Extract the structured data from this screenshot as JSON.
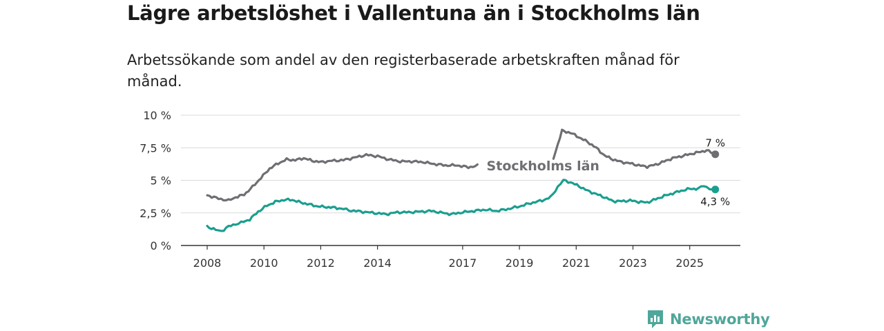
{
  "title": "Lägre arbetslöshet i Vallentuna än i Stockholms län",
  "subtitle": "Arbetssökande som andel av den registerbaserade arbetskraften månad för månad.",
  "brand": {
    "name": "Newsworthy",
    "icon": "newsworthy-logo-icon",
    "color": "#4fa69a"
  },
  "chart_data": {
    "type": "line",
    "title": "Lägre arbetslöshet i Vallentuna än i Stockholms län",
    "xlabel": "",
    "ylabel": "",
    "xlim": [
      2008.0,
      2025.9
    ],
    "ylim": [
      0,
      10
    ],
    "grid": true,
    "x_ticks": [
      2008,
      2010,
      2012,
      2014,
      2017,
      2019,
      2021,
      2023,
      2025
    ],
    "y_ticks": [
      {
        "value": 0,
        "label": "0 %"
      },
      {
        "value": 2.5,
        "label": "2,5 %"
      },
      {
        "value": 5,
        "label": "5 %"
      },
      {
        "value": 7.5,
        "label": "7,5 %"
      },
      {
        "value": 10,
        "label": "10 %"
      }
    ],
    "series": [
      {
        "name": "Stockholms län",
        "label": "Stockholms län",
        "color": "#6e6e73",
        "end_label": "7 %",
        "points": [
          [
            2008.0,
            3.85
          ],
          [
            2008.4,
            3.6
          ],
          [
            2008.75,
            3.45
          ],
          [
            2009.0,
            3.7
          ],
          [
            2009.3,
            3.9
          ],
          [
            2009.6,
            4.5
          ],
          [
            2009.9,
            5.2
          ],
          [
            2010.2,
            5.9
          ],
          [
            2010.5,
            6.3
          ],
          [
            2010.8,
            6.6
          ],
          [
            2011.1,
            6.55
          ],
          [
            2011.4,
            6.7
          ],
          [
            2011.7,
            6.5
          ],
          [
            2012.0,
            6.4
          ],
          [
            2012.4,
            6.5
          ],
          [
            2012.8,
            6.55
          ],
          [
            2013.2,
            6.75
          ],
          [
            2013.6,
            6.95
          ],
          [
            2014.0,
            6.85
          ],
          [
            2014.4,
            6.6
          ],
          [
            2014.8,
            6.45
          ],
          [
            2015.2,
            6.45
          ],
          [
            2015.6,
            6.4
          ],
          [
            2016.0,
            6.25
          ],
          [
            2016.4,
            6.15
          ],
          [
            2016.8,
            6.15
          ],
          [
            2017.2,
            6.0
          ],
          [
            2017.6,
            6.15
          ],
          [
            2020.2,
            6.7
          ],
          [
            2020.5,
            8.8
          ],
          [
            2020.8,
            8.65
          ],
          [
            2021.1,
            8.3
          ],
          [
            2021.4,
            7.95
          ],
          [
            2021.7,
            7.5
          ],
          [
            2022.0,
            6.9
          ],
          [
            2022.3,
            6.6
          ],
          [
            2022.6,
            6.4
          ],
          [
            2022.9,
            6.3
          ],
          [
            2023.2,
            6.15
          ],
          [
            2023.5,
            6.05
          ],
          [
            2023.8,
            6.2
          ],
          [
            2024.1,
            6.45
          ],
          [
            2024.4,
            6.7
          ],
          [
            2024.7,
            6.85
          ],
          [
            2025.0,
            7.0
          ],
          [
            2025.3,
            7.15
          ],
          [
            2025.6,
            7.3
          ],
          [
            2025.9,
            7.0
          ]
        ]
      },
      {
        "name": "Vallentuna",
        "label": "Vallentuna",
        "color": "#1a9e8f",
        "end_label": "4,3 %",
        "points": [
          [
            2008.0,
            1.45
          ],
          [
            2008.3,
            1.2
          ],
          [
            2008.5,
            1.1
          ],
          [
            2008.75,
            1.45
          ],
          [
            2009.0,
            1.65
          ],
          [
            2009.2,
            1.75
          ],
          [
            2009.5,
            2.0
          ],
          [
            2009.8,
            2.6
          ],
          [
            2010.1,
            3.05
          ],
          [
            2010.4,
            3.35
          ],
          [
            2010.7,
            3.5
          ],
          [
            2011.0,
            3.5
          ],
          [
            2011.3,
            3.3
          ],
          [
            2011.6,
            3.15
          ],
          [
            2011.9,
            3.0
          ],
          [
            2012.2,
            2.95
          ],
          [
            2012.5,
            2.9
          ],
          [
            2012.8,
            2.8
          ],
          [
            2013.0,
            2.7
          ],
          [
            2014.3,
            2.4
          ],
          [
            2014.7,
            2.55
          ],
          [
            2015.1,
            2.55
          ],
          [
            2015.5,
            2.6
          ],
          [
            2015.9,
            2.65
          ],
          [
            2016.3,
            2.5
          ],
          [
            2016.6,
            2.4
          ],
          [
            2017.0,
            2.55
          ],
          [
            2017.4,
            2.65
          ],
          [
            2017.8,
            2.75
          ],
          [
            2018.2,
            2.65
          ],
          [
            2018.6,
            2.8
          ],
          [
            2019.0,
            3.0
          ],
          [
            2019.4,
            3.25
          ],
          [
            2019.8,
            3.45
          ],
          [
            2020.1,
            3.7
          ],
          [
            2020.35,
            4.5
          ],
          [
            2020.55,
            5.0
          ],
          [
            2020.8,
            4.85
          ],
          [
            2021.1,
            4.55
          ],
          [
            2021.4,
            4.2
          ],
          [
            2021.7,
            3.95
          ],
          [
            2022.0,
            3.7
          ],
          [
            2022.3,
            3.4
          ],
          [
            2022.6,
            3.4
          ],
          [
            2022.9,
            3.45
          ],
          [
            2023.2,
            3.35
          ],
          [
            2023.5,
            3.3
          ],
          [
            2023.8,
            3.55
          ],
          [
            2024.1,
            3.8
          ],
          [
            2024.4,
            4.0
          ],
          [
            2024.7,
            4.2
          ],
          [
            2025.0,
            4.35
          ],
          [
            2025.3,
            4.35
          ],
          [
            2025.5,
            4.6
          ],
          [
            2025.7,
            4.35
          ],
          [
            2025.9,
            4.3
          ]
        ]
      }
    ]
  }
}
